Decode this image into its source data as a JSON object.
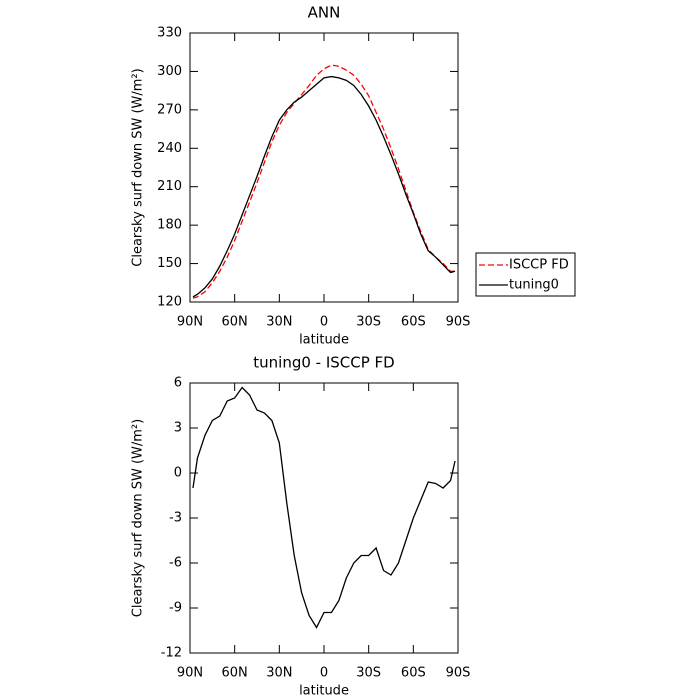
{
  "chart_data": [
    {
      "type": "line",
      "title": "ANN",
      "xlabel": "latitude",
      "ylabel": "Clearsky surf down SW (W/m²)",
      "x": [
        88,
        85,
        80,
        75,
        70,
        65,
        60,
        55,
        50,
        45,
        40,
        35,
        30,
        25,
        20,
        15,
        10,
        5,
        0,
        -5,
        -10,
        -15,
        -20,
        -25,
        -30,
        -35,
        -40,
        -45,
        -50,
        -55,
        -60,
        -65,
        -70,
        -75,
        -80,
        -85,
        -88
      ],
      "series": [
        {
          "name": "ISCCP FD",
          "color": "#ff0000",
          "dash": true,
          "values": [
            123,
            124,
            128,
            135,
            144,
            155,
            168,
            183,
            198,
            213,
            229,
            245,
            258,
            268,
            275,
            282,
            289,
            297,
            302,
            305,
            304,
            301,
            297,
            290,
            281,
            268,
            255,
            240,
            224,
            207,
            190,
            175,
            161,
            155,
            150,
            144,
            144
          ]
        },
        {
          "name": "tuning0",
          "color": "#000000",
          "dash": false,
          "values": [
            124,
            126,
            131,
            138,
            148,
            160,
            173,
            188,
            203,
            218,
            234,
            249,
            262,
            270,
            276,
            280,
            285,
            290,
            295,
            296,
            295,
            293,
            289,
            282,
            273,
            262,
            249,
            235,
            220,
            204,
            189,
            173,
            160,
            155,
            149,
            143,
            144
          ]
        }
      ],
      "xlim": [
        90,
        -90
      ],
      "xticks": [
        {
          "value": 90,
          "label": "90N"
        },
        {
          "value": 60,
          "label": "60N"
        },
        {
          "value": 30,
          "label": "30N"
        },
        0,
        {
          "value": -30,
          "label": "30S"
        },
        {
          "value": -60,
          "label": "60S"
        },
        {
          "value": -90,
          "label": "90S"
        }
      ],
      "ylim": [
        120,
        330
      ],
      "yticks": [
        120,
        150,
        180,
        210,
        240,
        270,
        300,
        330
      ],
      "legend": "outside-right"
    },
    {
      "type": "line",
      "title": "tuning0 - ISCCP FD",
      "xlabel": "latitude",
      "ylabel": "Clearsky surf down SW (W/m²)",
      "x": [
        88,
        85,
        80,
        75,
        70,
        65,
        60,
        55,
        50,
        45,
        40,
        35,
        30,
        25,
        20,
        15,
        10,
        5,
        0,
        -5,
        -10,
        -15,
        -20,
        -25,
        -30,
        -35,
        -40,
        -45,
        -50,
        -55,
        -60,
        -65,
        -70,
        -75,
        -80,
        -85,
        -88
      ],
      "series": [
        {
          "color": "#000000",
          "dash": false,
          "values": [
            -1,
            1,
            2.5,
            3.5,
            3.8,
            4.8,
            5,
            5.7,
            5.2,
            4.2,
            4,
            3.5,
            2,
            -2,
            -5.5,
            -8,
            -9.5,
            -10.3,
            -9.3,
            -9.3,
            -8.5,
            -7,
            -6,
            -5.5,
            -5.5,
            -5,
            -6.5,
            -6.8,
            -6,
            -4.5,
            -3,
            -1.8,
            -0.6,
            -0.7,
            -1,
            -0.5,
            0.8
          ]
        }
      ],
      "xlim": [
        90,
        -90
      ],
      "xticks": [
        {
          "value": 90,
          "label": "90N"
        },
        {
          "value": 60,
          "label": "60N"
        },
        {
          "value": 30,
          "label": "30N"
        },
        0,
        {
          "value": -30,
          "label": "30S"
        },
        {
          "value": -60,
          "label": "60S"
        },
        {
          "value": -90,
          "label": "90S"
        }
      ],
      "ylim": [
        -12,
        6
      ],
      "yticks": [
        -12,
        -9,
        -6,
        -3,
        0,
        3,
        6
      ]
    }
  ]
}
